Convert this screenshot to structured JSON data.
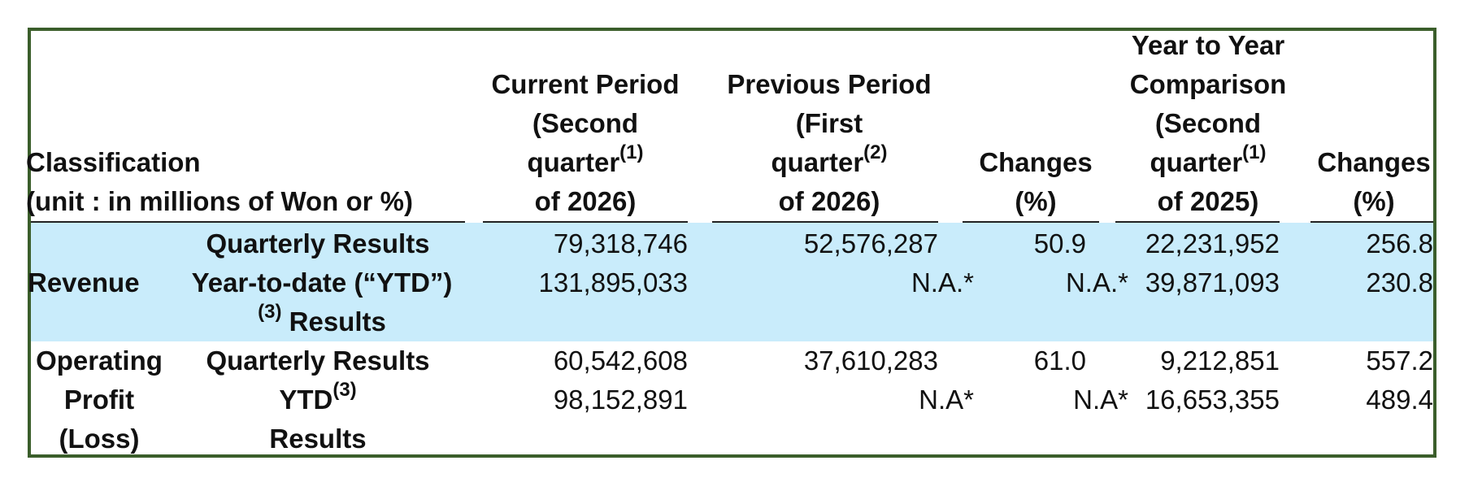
{
  "table": {
    "header": {
      "classification_line1": "Classification",
      "classification_line2": "(unit : in millions of Won or %)",
      "current": {
        "line1": "Current Period",
        "line2": "(Second",
        "line3_word": "quarter",
        "line3_sup": "(1)",
        "line4": "of 2026)"
      },
      "previous": {
        "line1": "Previous Period",
        "line2": "(First",
        "line3_word": "quarter",
        "line3_sup": "(2)",
        "line4": "of 2026)"
      },
      "changes_1": {
        "line1": "Changes",
        "line2": "(%)"
      },
      "yoy": {
        "line1": "Year to Year",
        "line2": "Comparison",
        "line3": "(Second",
        "line4_word": "quarter",
        "line4_sup": "(1)",
        "line5": "of 2025)"
      },
      "changes_2": {
        "line1": "Changes",
        "line2": "(%)"
      }
    },
    "rows": [
      {
        "group": "Revenue",
        "sub_rows": [
          {
            "label": "Quarterly Results",
            "current": "79,318,746",
            "previous": "52,576,287",
            "change1": "50.9",
            "yoy": "22,231,952",
            "change2": "256.8"
          },
          {
            "label_line1": "Year-to-date (“YTD”)",
            "label_line2_sup": "(3)",
            "label_line2_word": "Results",
            "current": "131,895,033",
            "previous": "N.A.*",
            "change1": "N.A.*",
            "yoy": "39,871,093",
            "change2": "230.8"
          }
        ]
      },
      {
        "group_line1": "Operating",
        "group_line2": "Profit",
        "group_line3": "(Loss)",
        "sub_rows": [
          {
            "label": "Quarterly Results",
            "current": "60,542,608",
            "previous": "37,610,283",
            "change1": "61.0",
            "yoy": "9,212,851",
            "change2": "557.2"
          },
          {
            "label_line1_word": "YTD",
            "label_line1_sup": "(3)",
            "label_line2": "Results",
            "current": "98,152,891",
            "previous": "N.A*",
            "change1": "N.A*",
            "yoy": "16,653,355",
            "change2": "489.4"
          }
        ]
      }
    ]
  },
  "colors": {
    "border": "#3b5e2b",
    "band": "#c9ecfb",
    "text": "#111111"
  }
}
